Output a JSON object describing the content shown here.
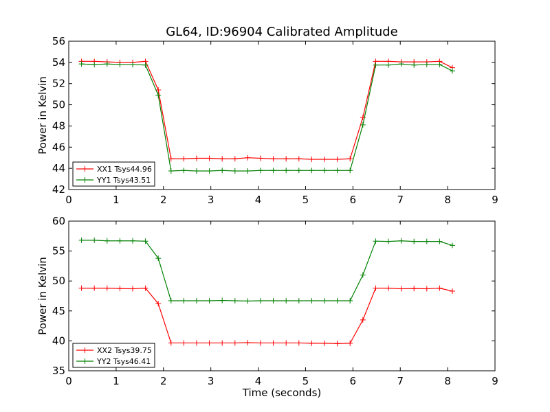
{
  "figure": {
    "title": "GL64, ID:96904 Calibrated Amplitude"
  },
  "colors": {
    "red": "#ff0000",
    "green": "#008000"
  },
  "chart_data": [
    {
      "type": "line",
      "title": "",
      "xlabel": "",
      "ylabel": "Power in Kelvin",
      "xlim": [
        0,
        9
      ],
      "ylim": [
        42,
        56
      ],
      "xticks": [
        "0",
        "1",
        "2",
        "3",
        "4",
        "5",
        "6",
        "7",
        "8",
        "9"
      ],
      "yticks": [
        "42",
        "44",
        "46",
        "48",
        "50",
        "52",
        "54",
        "56"
      ],
      "grid": false,
      "legend_position": "lower-left",
      "x": [
        0.27,
        0.54,
        0.81,
        1.08,
        1.35,
        1.62,
        1.89,
        2.16,
        2.43,
        2.7,
        2.97,
        3.24,
        3.51,
        3.78,
        4.05,
        4.32,
        4.59,
        4.86,
        5.13,
        5.4,
        5.67,
        5.94,
        6.21,
        6.48,
        6.75,
        7.02,
        7.29,
        7.56,
        7.83,
        8.1
      ],
      "series": [
        {
          "name": "XX1 Tsys44.96",
          "color": "#ff0000",
          "values": [
            54.1,
            54.1,
            54.05,
            54.0,
            54.0,
            54.1,
            51.4,
            44.9,
            44.9,
            44.95,
            44.95,
            44.9,
            44.9,
            45.0,
            44.95,
            44.9,
            44.9,
            44.9,
            44.85,
            44.85,
            44.85,
            44.9,
            48.8,
            54.1,
            54.1,
            54.05,
            54.05,
            54.05,
            54.1,
            53.5
          ]
        },
        {
          "name": "YY1 Tsys43.51",
          "color": "#008000",
          "values": [
            53.85,
            53.8,
            53.85,
            53.8,
            53.8,
            53.75,
            50.9,
            43.75,
            43.8,
            43.75,
            43.75,
            43.8,
            43.75,
            43.75,
            43.8,
            43.8,
            43.8,
            43.8,
            43.8,
            43.8,
            43.8,
            43.8,
            48.1,
            53.75,
            53.75,
            53.85,
            53.75,
            53.8,
            53.8,
            53.2
          ]
        }
      ]
    },
    {
      "type": "line",
      "title": "",
      "xlabel": "Time (seconds)",
      "ylabel": "Power in Kelvin",
      "xlim": [
        0,
        9
      ],
      "ylim": [
        35,
        60
      ],
      "xticks": [
        "0",
        "1",
        "2",
        "3",
        "4",
        "5",
        "6",
        "7",
        "8",
        "9"
      ],
      "yticks": [
        "35",
        "40",
        "45",
        "50",
        "55",
        "60"
      ],
      "grid": false,
      "legend_position": "lower-left",
      "x": [
        0.27,
        0.54,
        0.81,
        1.08,
        1.35,
        1.62,
        1.89,
        2.16,
        2.43,
        2.7,
        2.97,
        3.24,
        3.51,
        3.78,
        4.05,
        4.32,
        4.59,
        4.86,
        5.13,
        5.4,
        5.67,
        5.94,
        6.21,
        6.48,
        6.75,
        7.02,
        7.29,
        7.56,
        7.83,
        8.1
      ],
      "series": [
        {
          "name": "XX2 Tsys39.75",
          "color": "#ff0000",
          "values": [
            48.8,
            48.8,
            48.8,
            48.75,
            48.7,
            48.8,
            46.2,
            39.65,
            39.65,
            39.65,
            39.65,
            39.65,
            39.65,
            39.7,
            39.65,
            39.65,
            39.65,
            39.65,
            39.6,
            39.6,
            39.55,
            39.6,
            43.5,
            48.8,
            48.8,
            48.7,
            48.75,
            48.7,
            48.8,
            48.3
          ]
        },
        {
          "name": "YY2 Tsys46.41",
          "color": "#008000",
          "values": [
            56.8,
            56.8,
            56.7,
            56.7,
            56.7,
            56.65,
            53.8,
            46.7,
            46.7,
            46.7,
            46.7,
            46.75,
            46.7,
            46.65,
            46.7,
            46.7,
            46.7,
            46.7,
            46.7,
            46.7,
            46.7,
            46.7,
            51.0,
            56.65,
            56.6,
            56.7,
            56.6,
            56.6,
            56.6,
            55.95
          ]
        }
      ]
    }
  ]
}
